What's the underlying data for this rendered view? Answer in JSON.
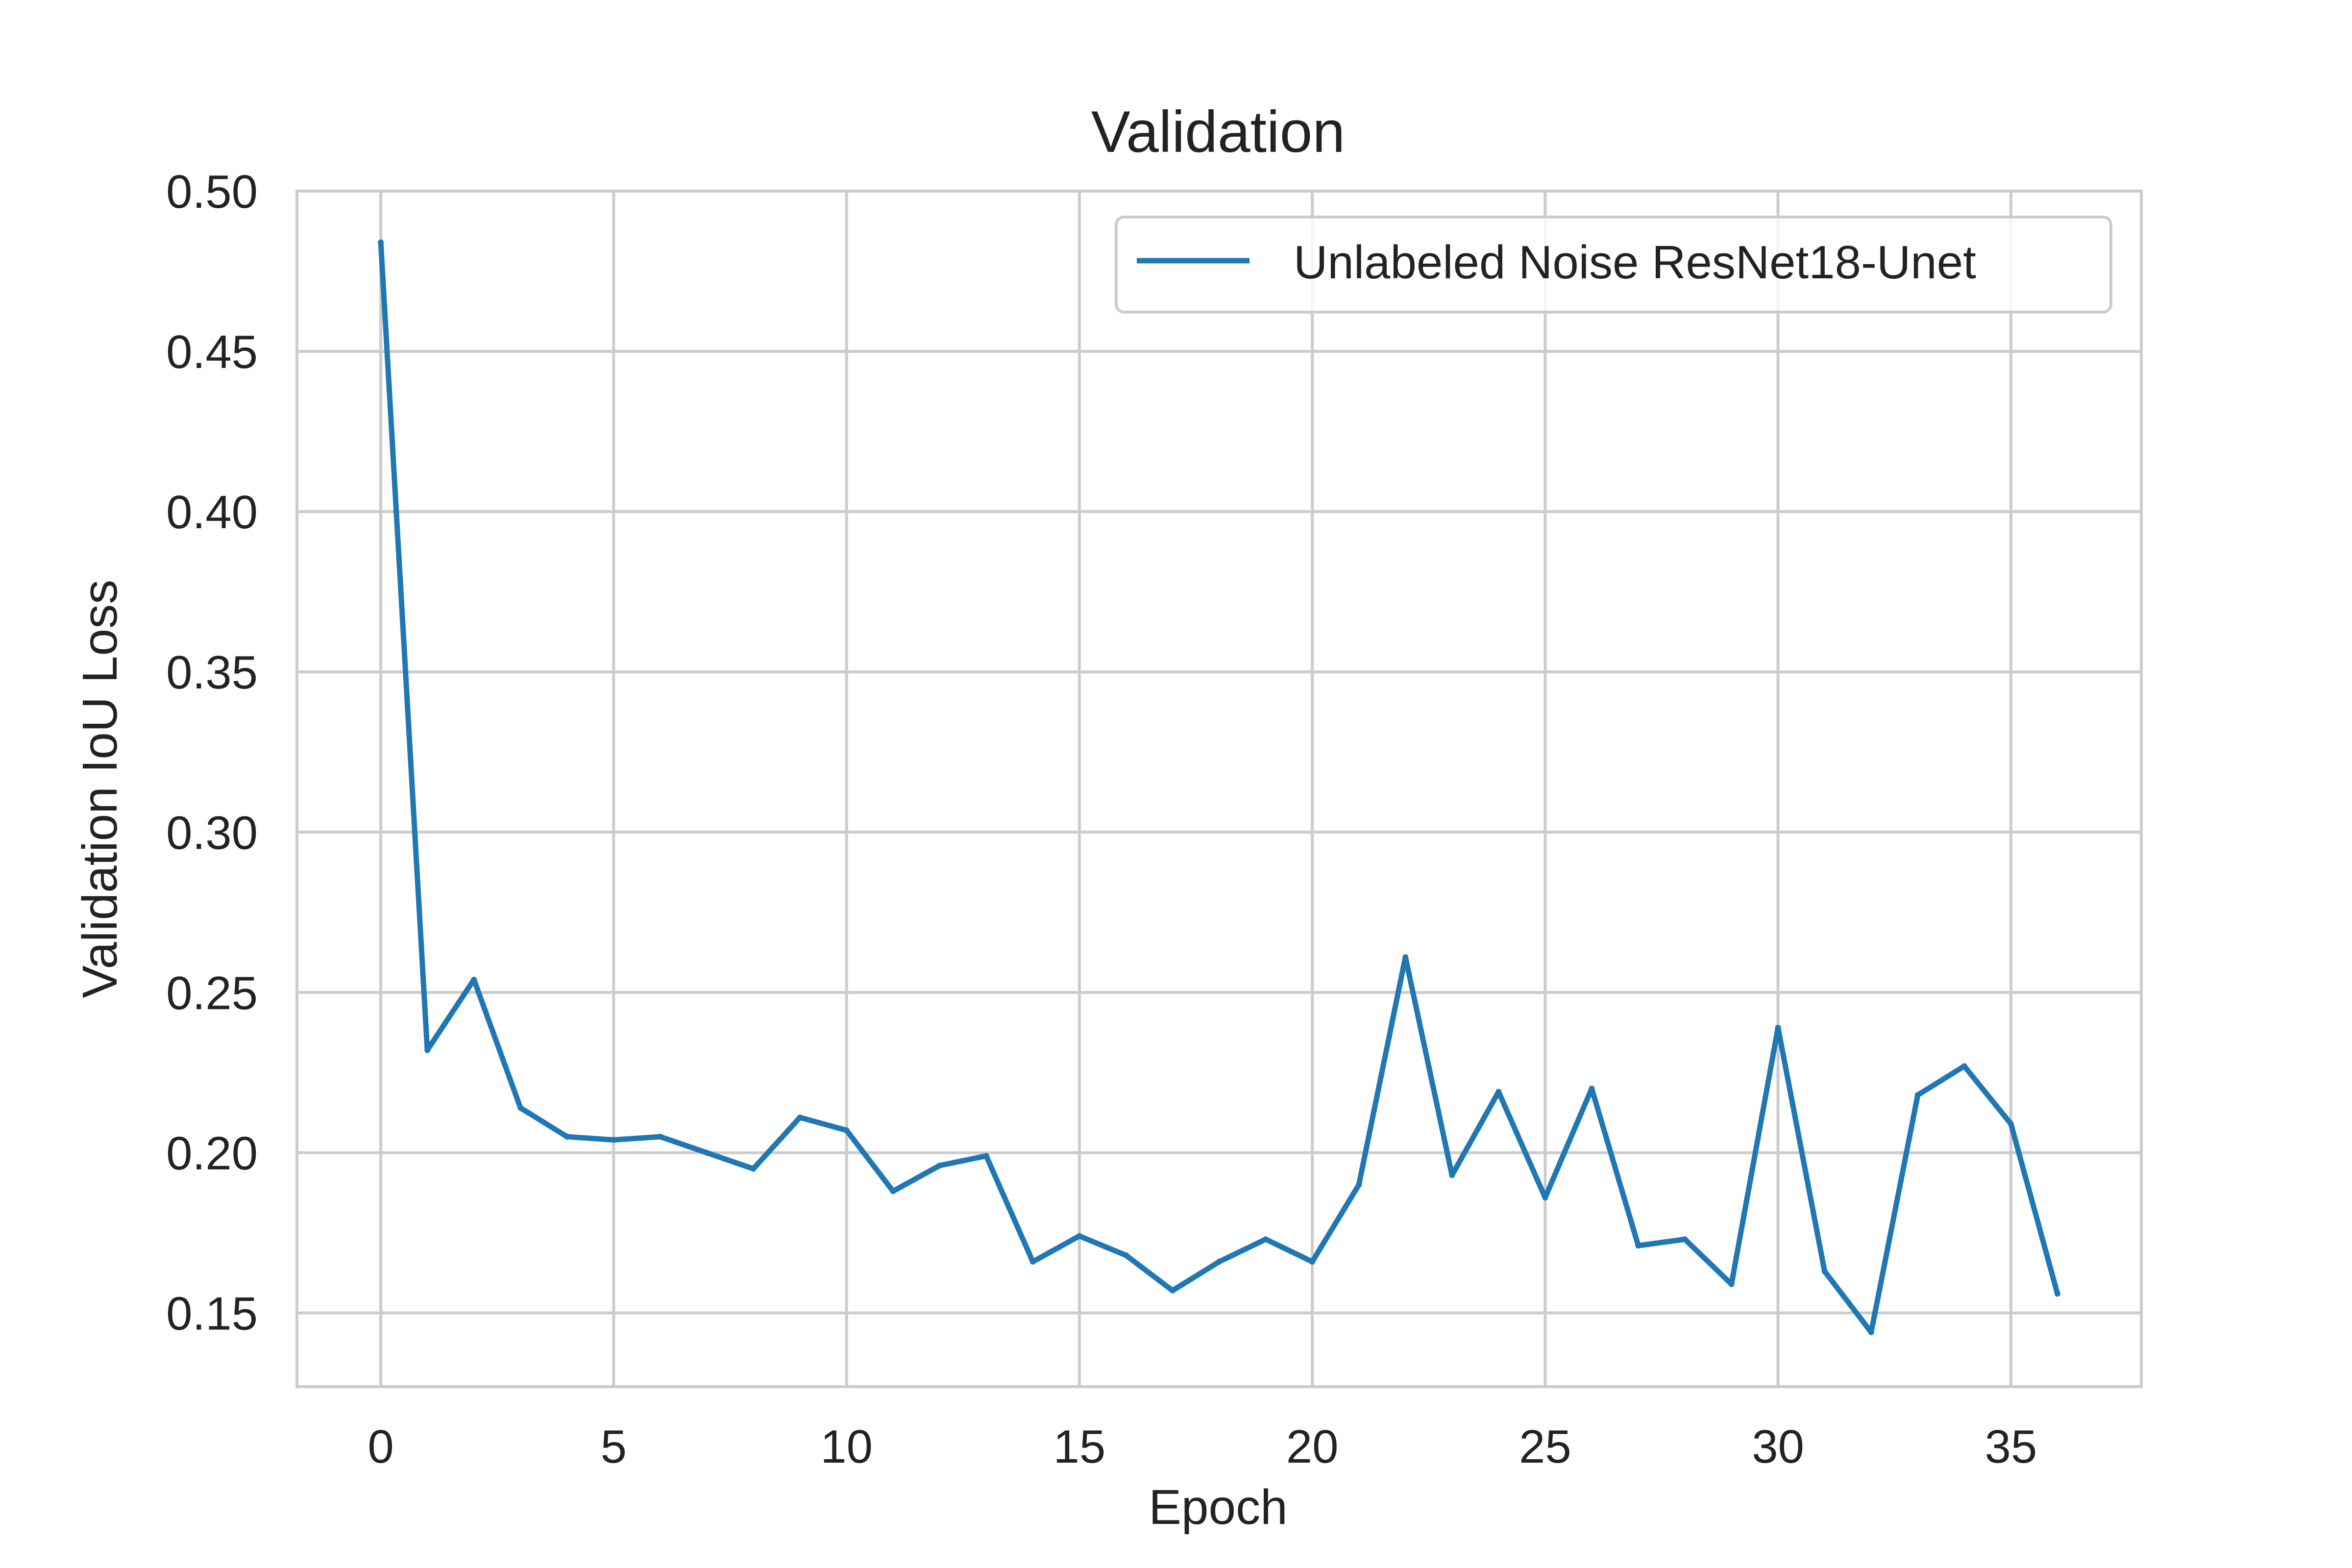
{
  "chart_data": {
    "type": "line",
    "title": "Validation",
    "xlabel": "Epoch",
    "ylabel": "Validation IoU Loss",
    "xlim": [
      -1.8,
      37.8
    ],
    "ylim": [
      0.127,
      0.5
    ],
    "xticks": [
      "0",
      "5",
      "10",
      "15",
      "20",
      "25",
      "30",
      "35"
    ],
    "xtick_values": [
      0,
      5,
      10,
      15,
      20,
      25,
      30,
      35
    ],
    "yticks": [
      "0.15",
      "0.20",
      "0.25",
      "0.30",
      "0.35",
      "0.40",
      "0.45",
      "0.50"
    ],
    "ytick_values": [
      0.15,
      0.2,
      0.25,
      0.3,
      0.35,
      0.4,
      0.45,
      0.5
    ],
    "grid": true,
    "legend_position": "top-right",
    "series": [
      {
        "name": "Unlabeled Noise ResNet18-Unet",
        "color": "#1f77b4",
        "x": [
          0,
          1,
          2,
          3,
          4,
          5,
          6,
          7,
          8,
          9,
          10,
          11,
          12,
          13,
          14,
          15,
          16,
          17,
          18,
          19,
          20,
          21,
          22,
          23,
          24,
          25,
          26,
          27,
          28,
          29,
          30,
          31,
          32,
          33,
          34,
          35,
          36
        ],
        "y": [
          0.484,
          0.232,
          0.254,
          0.214,
          0.205,
          0.204,
          0.205,
          0.2,
          0.195,
          0.211,
          0.207,
          0.188,
          0.196,
          0.199,
          0.166,
          0.174,
          0.168,
          0.157,
          0.166,
          0.173,
          0.166,
          0.19,
          0.261,
          0.193,
          0.219,
          0.186,
          0.22,
          0.171,
          0.173,
          0.159,
          0.239,
          0.163,
          0.144,
          0.218,
          0.227,
          0.209,
          0.156
        ]
      }
    ]
  }
}
